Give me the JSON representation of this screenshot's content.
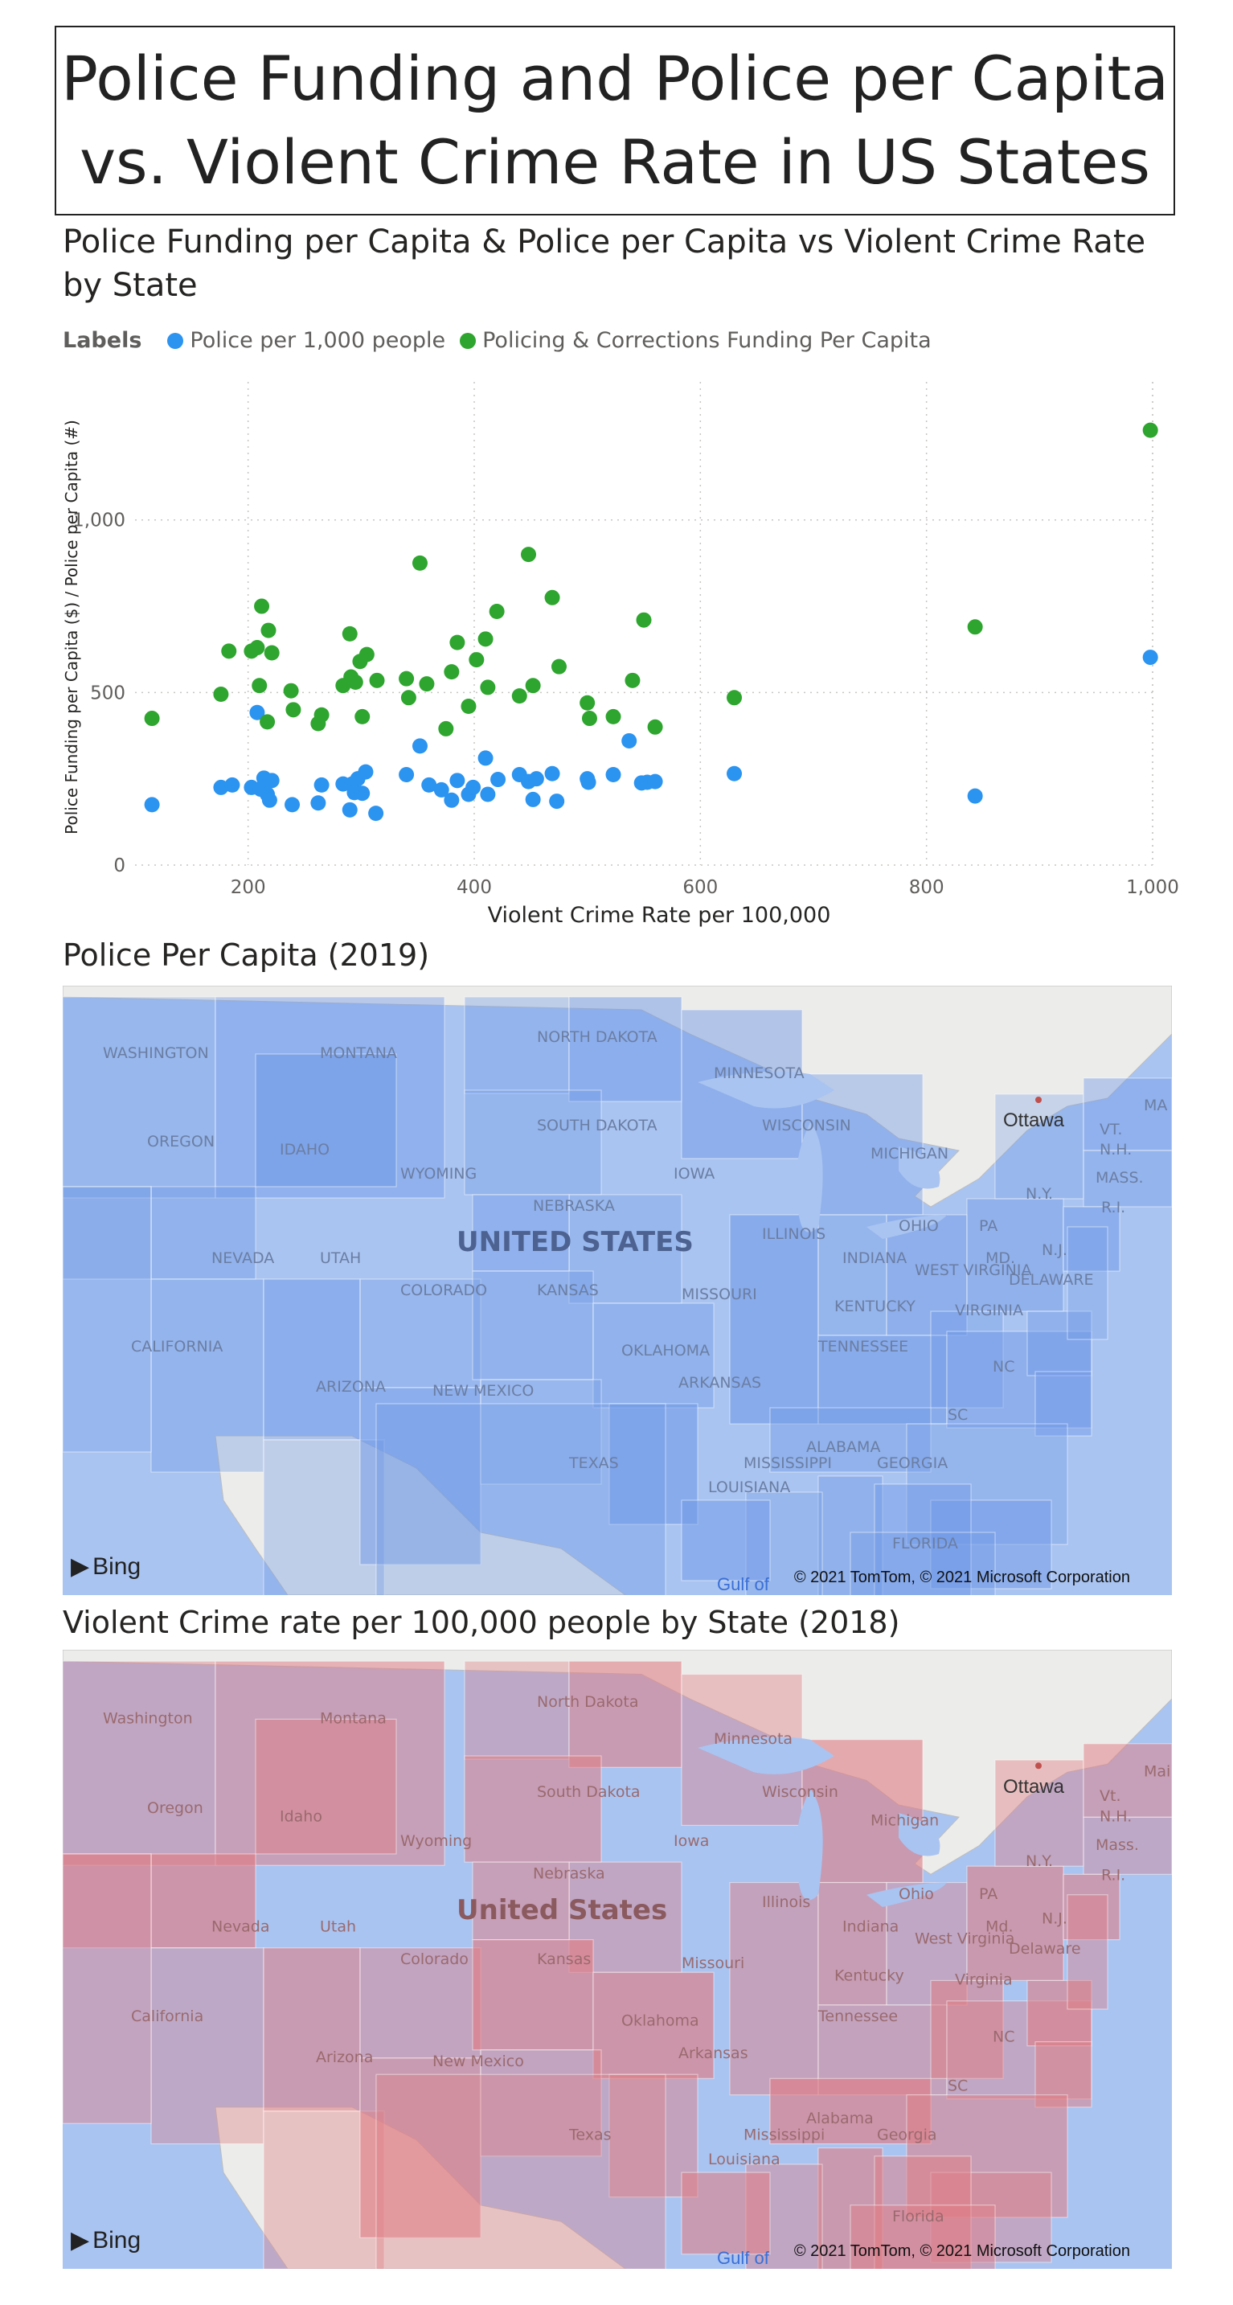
{
  "page": {
    "title_line1": "Police Funding and Police per Capita",
    "title_line2": "vs. Violent Crime Rate in US States"
  },
  "scatter": {
    "title": "Police Funding per Capita & Police per Capita vs Violent Crime Rate by State",
    "legend_title": "Labels",
    "colors": {
      "police": "#2b93f0",
      "funding": "#2ea52e"
    }
  },
  "chart_data": {
    "type": "scatter",
    "title": "Police Funding per Capita & Police per Capita vs Violent Crime Rate by State",
    "xlabel": "Violent Crime Rate per 100,000",
    "ylabel": "Police Funding per Capita ($) / Police per Capita (#)",
    "xlim": [
      100,
      1000
    ],
    "ylim": [
      0,
      1400
    ],
    "xticks": [
      "200",
      "400",
      "600",
      "800",
      "1,000"
    ],
    "yticks": [
      "0",
      "500",
      "1,000"
    ],
    "xtick_values": [
      200,
      400,
      600,
      800,
      1000
    ],
    "ytick_values": [
      0,
      500,
      1000
    ],
    "grid": true,
    "legend_position": "top-left",
    "series": [
      {
        "name": "Police per 1,000 people",
        "color": "#2b93f0",
        "x": [
          115,
          176,
          186,
          203,
          208,
          211,
          214,
          217,
          219,
          221,
          239,
          262,
          265,
          284,
          290,
          292,
          294,
          297,
          301,
          304,
          313,
          340,
          352,
          360,
          371,
          380,
          385,
          395,
          399,
          410,
          412,
          421,
          440,
          448,
          452,
          455,
          469,
          473,
          500,
          501,
          523,
          537,
          548,
          553,
          560,
          630,
          843,
          998
        ],
        "y": [
          175,
          225,
          232,
          225,
          442,
          220,
          252,
          205,
          188,
          245,
          175,
          180,
          232,
          235,
          160,
          235,
          210,
          250,
          208,
          270,
          150,
          262,
          345,
          232,
          218,
          188,
          245,
          205,
          225,
          310,
          205,
          248,
          262,
          242,
          190,
          250,
          265,
          185,
          250,
          240,
          262,
          360,
          238,
          240,
          242,
          265,
          200,
          602
        ]
      },
      {
        "name": "Policing & Corrections Funding Per Capita",
        "color": "#2ea52e",
        "x": [
          115,
          176,
          183,
          203,
          208,
          210,
          212,
          217,
          218,
          221,
          238,
          240,
          262,
          265,
          284,
          290,
          291,
          295,
          299,
          301,
          305,
          314,
          340,
          342,
          352,
          358,
          375,
          380,
          385,
          395,
          402,
          410,
          412,
          420,
          440,
          448,
          452,
          469,
          475,
          500,
          502,
          523,
          540,
          550,
          560,
          630,
          843,
          998
        ],
        "y": [
          425,
          495,
          620,
          620,
          630,
          520,
          750,
          415,
          680,
          615,
          505,
          450,
          410,
          435,
          520,
          670,
          545,
          530,
          590,
          430,
          610,
          535,
          540,
          485,
          875,
          525,
          395,
          560,
          645,
          460,
          595,
          655,
          515,
          735,
          490,
          900,
          520,
          775,
          575,
          470,
          425,
          430,
          535,
          710,
          400,
          485,
          690,
          1260
        ]
      }
    ]
  },
  "map1": {
    "title": "Police Per Capita (2019)",
    "country_label": "UNITED STATES",
    "city_label": "Ottawa",
    "gulf_label": "Gulf of",
    "brand": "Bing",
    "copyright": "© 2021 TomTom, © 2021 Microsoft Corporation",
    "fill_color": "#6d97e6",
    "state_labels": [
      "WASHINGTON",
      "MONTANA",
      "NORTH DAKOTA",
      "MINNESOTA",
      "OREGON",
      "IDAHO",
      "WYOMING",
      "SOUTH DAKOTA",
      "WISCONSIN",
      "MICHIGAN",
      "IOWA",
      "NEBRASKA",
      "NEVADA",
      "UTAH",
      "COLORADO",
      "KANSAS",
      "ILLINOIS",
      "INDIANA",
      "OHIO",
      "PA",
      "N.Y.",
      "VT.",
      "N.H.",
      "MA",
      "MASS.",
      "R.I.",
      "CALIFORNIA",
      "MISSOURI",
      "KENTUCKY",
      "WEST VIRGINIA",
      "VIRGINIA",
      "MD.",
      "N.J.",
      "DELAWARE",
      "ARIZONA",
      "NEW MEXICO",
      "OKLAHOMA",
      "TENNESSEE",
      "ARKANSAS",
      "NC",
      "SC",
      "ALABAMA",
      "MISSISSIPPI",
      "GEORGIA",
      "TEXAS",
      "LOUISIANA",
      "FLORIDA"
    ]
  },
  "map2": {
    "title": "Violent Crime rate per 100,000 people by State (2018)",
    "country_label": "United States",
    "city_label": "Ottawa",
    "gulf_label": "Gulf of",
    "brand": "Bing",
    "copyright": "© 2021 TomTom, © 2021 Microsoft Corporation",
    "fill_color": "#e07d84",
    "state_labels": [
      "Washington",
      "Montana",
      "North Dakota",
      "Minnesota",
      "Oregon",
      "Idaho",
      "Wyoming",
      "South Dakota",
      "Wisconsin",
      "Michigan",
      "Iowa",
      "Nebraska",
      "Nevada",
      "Utah",
      "Colorado",
      "Kansas",
      "Illinois",
      "Indiana",
      "Ohio",
      "PA",
      "N.Y.",
      "Vt.",
      "N.H.",
      "Maine",
      "Mass.",
      "R.I.",
      "California",
      "Missouri",
      "Kentucky",
      "West Virginia",
      "Virginia",
      "Md.",
      "N.J.",
      "Delaware",
      "Arizona",
      "New Mexico",
      "Oklahoma",
      "Tennessee",
      "Arkansas",
      "NC",
      "SC",
      "Alabama",
      "Mississippi",
      "Georgia",
      "Texas",
      "Louisiana",
      "Florida"
    ]
  }
}
